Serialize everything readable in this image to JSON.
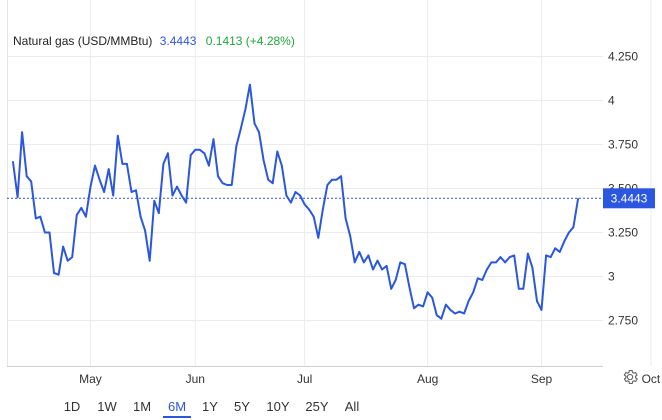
{
  "chart_data": {
    "type": "line",
    "title": "Natural gas (USD/MMBtu)",
    "last_value": "3.4443",
    "change": "0.1413 (+4.28%)",
    "ylim": [
      2.5,
      4.45
    ],
    "y_ticks": [
      "4.250",
      "4",
      "3.750",
      "3.500",
      "3.250",
      "3",
      "2.750"
    ],
    "y_tick_values": [
      4.25,
      4.0,
      3.75,
      3.5,
      3.25,
      3.0,
      2.75
    ],
    "x_ticks": [
      "May",
      "Jun",
      "Jul",
      "Aug",
      "Sep",
      "Oct"
    ],
    "x_tick_index": [
      17,
      40,
      64,
      91,
      116,
      140
    ],
    "grid": true,
    "y_axis_position": "right",
    "line_color": "#2b56e0",
    "series": [
      {
        "values": [
          3.65,
          3.45,
          3.82,
          3.57,
          3.54,
          3.33,
          3.34,
          3.25,
          3.25,
          3.02,
          3.01,
          3.17,
          3.09,
          3.11,
          3.35,
          3.39,
          3.34,
          3.51,
          3.63,
          3.55,
          3.48,
          3.61,
          3.46,
          3.8,
          3.64,
          3.64,
          3.48,
          3.49,
          3.34,
          3.26,
          3.09,
          3.43,
          3.36,
          3.64,
          3.7,
          3.46,
          3.51,
          3.46,
          3.42,
          3.69,
          3.72,
          3.72,
          3.7,
          3.63,
          3.78,
          3.57,
          3.53,
          3.52,
          3.52,
          3.74,
          3.84,
          3.95,
          4.09,
          3.87,
          3.82,
          3.66,
          3.55,
          3.53,
          3.71,
          3.63,
          3.46,
          3.42,
          3.48,
          3.46,
          3.41,
          3.38,
          3.34,
          3.22,
          3.38,
          3.52,
          3.55,
          3.55,
          3.57,
          3.33,
          3.23,
          3.08,
          3.14,
          3.08,
          3.12,
          3.04,
          3.09,
          3.04,
          3.06,
          2.93,
          2.98,
          3.08,
          3.07,
          2.94,
          2.82,
          2.84,
          2.83,
          2.91,
          2.88,
          2.78,
          2.76,
          2.84,
          2.81,
          2.79,
          2.8,
          2.79,
          2.86,
          2.91,
          2.99,
          2.98,
          3.04,
          3.08,
          3.08,
          3.11,
          3.08,
          3.11,
          3.12,
          2.93,
          2.93,
          3.13,
          3.05,
          2.86,
          2.81,
          3.12,
          3.11,
          3.16,
          3.14,
          3.2,
          3.25,
          3.28,
          3.44
        ]
      }
    ]
  },
  "range_buttons": [
    "1D",
    "1W",
    "1M",
    "6M",
    "1Y",
    "5Y",
    "10Y",
    "25Y",
    "All"
  ],
  "active_range": "6M",
  "settings_icon": "gear-icon"
}
